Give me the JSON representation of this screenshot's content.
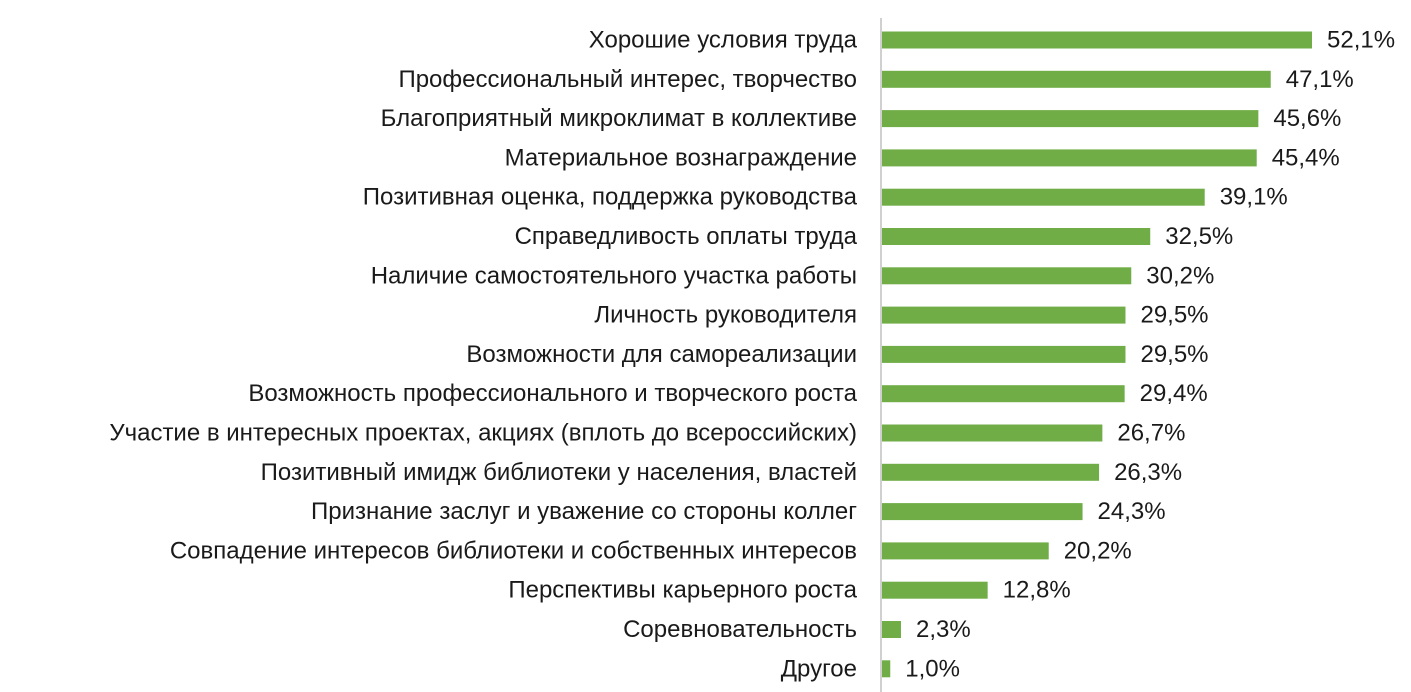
{
  "chart_data": {
    "type": "bar",
    "orientation": "horizontal",
    "categories": [
      "Хорошие условия труда",
      "Профессиональный интерес, творчество",
      "Благоприятный микроклимат в коллективе",
      "Материальное вознаграждение",
      "Позитивная оценка, поддержка руководства",
      "Справедливость оплаты труда",
      "Наличие самостоятельного участка работы",
      "Личность руководителя",
      "Возможности для самореализации",
      "Возможность профессионального и творческого роста",
      "Участие в интересных проектах, акциях (вплоть до всероссийских)",
      "Позитивный имидж библиотеки у населения, властей",
      "Признание заслуг и уважение со стороны коллег",
      "Совпадение интересов библиотеки и собственных интересов",
      "Перспективы карьерного роста",
      "Соревновательность",
      "Другое"
    ],
    "values": [
      52.1,
      47.1,
      45.6,
      45.4,
      39.1,
      32.5,
      30.2,
      29.5,
      29.5,
      29.4,
      26.7,
      26.3,
      24.3,
      20.2,
      12.8,
      2.3,
      1.0
    ],
    "value_labels": [
      "52,1%",
      "47,1%",
      "45,6%",
      "45,4%",
      "39,1%",
      "32,5%",
      "30,2%",
      "29,5%",
      "29,5%",
      "29,4%",
      "26,7%",
      "26,3%",
      "24,3%",
      "20,2%",
      "12,8%",
      "2,3%",
      "1,0%"
    ],
    "unit": "%",
    "xlim": [
      0,
      52.1
    ],
    "title": "",
    "xlabel": "",
    "ylabel": "",
    "grid": false,
    "legend": "none",
    "bar_color": "#70ad47",
    "axis_color": "#d0d0d0",
    "text_color": "#1a1a1a"
  }
}
